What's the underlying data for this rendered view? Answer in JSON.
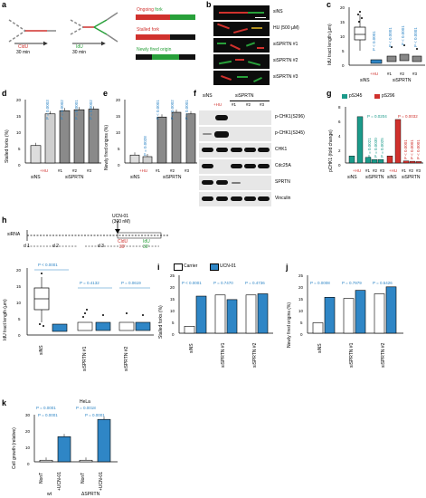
{
  "figure_labels": {
    "a": "a",
    "b": "b",
    "c": "c",
    "d": "d",
    "e": "e",
    "f": "f",
    "g": "g",
    "h": "h",
    "i": "i",
    "j": "j",
    "k": "k"
  },
  "panel_a": {
    "cldu": "CldU",
    "cldu_time": "30 min",
    "idu": "IdU",
    "idu_time": "30 min",
    "ongoing_1": "Ongoing",
    "ongoing_2": "fork",
    "stalled_1": "Stalled",
    "stalled_2": "fork",
    "newly_1": "Newly fired",
    "newly_2": "origin"
  },
  "panel_b": {
    "rows": [
      "siNS",
      "HU (500 µM)",
      "siSPRTN #1",
      "siSPRTN #2",
      "siSPRTN #3"
    ]
  },
  "panel_c": {
    "ylabel": "IdU tract length (µm)",
    "yticks": [
      "0",
      "5",
      "10",
      "15",
      "20"
    ],
    "hu": "+HU",
    "x": [
      "#1",
      "#2",
      "#3"
    ],
    "group_sins": "siNS",
    "group_sisprtn": "siSPRTN",
    "pvals": [
      "P < 0.0001",
      "P < 0.0001",
      "P < 0.0001",
      "P < 0.0001"
    ]
  },
  "panel_d": {
    "ylabel": "Stalled forks (%)",
    "yticks": [
      "0",
      "5",
      "10",
      "15",
      "20"
    ],
    "hu": "+HU",
    "x": [
      "#1",
      "#2",
      "#3"
    ],
    "group_sins": "siNS",
    "group_sisprtn": "siSPRTN",
    "pvals": [
      "P = 0.0003",
      "P = 0.0002",
      "P = 0.0001",
      "P = 0.0002"
    ]
  },
  "panel_e": {
    "ylabel": "Newly fired origins (%)",
    "yticks": [
      "0",
      "5",
      "10",
      "15",
      "20"
    ],
    "hu": "+HU",
    "x": [
      "#1",
      "#2",
      "#3"
    ],
    "group_sins": "siNS",
    "group_sisprtn": "siSPRTN",
    "pvals": [
      "P = 0.0028",
      "P < 0.0001",
      "P = 0.0002",
      "P < 0.0001"
    ]
  },
  "panel_f": {
    "col_sins": "siNS",
    "col_sisprtn": "siSPRTN",
    "cols": [
      "+HU",
      "#1",
      "#2",
      "#3"
    ],
    "rows": [
      "p-CHK1(S296)",
      "p-CHK1(S345)",
      "CHK1",
      "Cdc25A",
      "SPRTN",
      "Vinculin"
    ]
  },
  "panel_g": {
    "ylabel": "pCHK1 (fold change)",
    "yticks": [
      "0",
      "2",
      "4",
      "6",
      "8"
    ],
    "legend": [
      "pS345",
      "pS296"
    ],
    "hu": "+HU",
    "x": [
      "#1",
      "#2",
      "#3"
    ],
    "group_sins": "siNS",
    "group_sisprtn": "siSPRTN",
    "pvals_teal": [
      "P = 0.0204",
      "P = 0.0021",
      "P = 0.0030",
      "P = 0.0025"
    ],
    "pvals_red": [
      "P = 0.0032",
      "P < 0.0001",
      "P < 0.0001",
      "P < 0.0001"
    ]
  },
  "panel_h_timeline": {
    "sirna": "siRNA",
    "ucn": "UCN-01",
    "ucn_dose": "(300 nM)",
    "cldu": "CldU",
    "cldu_time": "30'",
    "idu": "IdU",
    "idu_time": "30'",
    "days": [
      "d 1",
      "d 2",
      "d 3"
    ]
  },
  "panel_h": {
    "ylabel": "IdU tract length (µm)",
    "yticks": [
      "0",
      "5",
      "10",
      "15",
      "20"
    ],
    "groups": [
      "siNS",
      "siSPRTN #1",
      "siSPRTN #2"
    ],
    "pvals": [
      "P < 0.0001",
      "P = 0.4132",
      "P = 0.0619"
    ]
  },
  "legend_ij": {
    "carrier": "Carrier",
    "ucn": "UCN-01"
  },
  "panel_i": {
    "ylabel": "Stalled forks (%)",
    "yticks": [
      "0",
      "5",
      "10",
      "15",
      "20",
      "25"
    ],
    "groups": [
      "siNS",
      "siSPRTN #1",
      "siSPRTN #2"
    ],
    "pvals": [
      "P < 0.0001",
      "P = 0.7470",
      "P = 0.4736"
    ]
  },
  "panel_j": {
    "ylabel": "Newly fired origins (%)",
    "yticks": [
      "0",
      "5",
      "10",
      "15",
      "20",
      "25"
    ],
    "groups": [
      "siNS",
      "siSPRTN #1",
      "siSPRTN #2"
    ],
    "pvals": [
      "P = 0.0008",
      "P = 0.7979",
      "P = 0.5426"
    ]
  },
  "panel_k": {
    "title": "HeLa",
    "ylabel": "Cell growth (relative)",
    "yticks": [
      "0",
      "10",
      "20",
      "30"
    ],
    "x": [
      "NonT",
      "+UCN-01",
      "NonT",
      "+UCN-01"
    ],
    "groups": [
      "wt",
      "ΔSPRTN"
    ],
    "pvals": [
      "P = 0.0001",
      "P = 0.0018",
      "P = 0.0001",
      "P = 0.0001"
    ]
  },
  "colors": {
    "blue": "#2f86c6",
    "teal": "#1b9a8a",
    "red": "#d0312d",
    "green": "#28a03a",
    "gray": "#8a8a8a"
  },
  "chart_data": [
    {
      "panel": "d",
      "type": "bar",
      "categories": [
        "siNS",
        "+HU",
        "#1",
        "#2",
        "#3"
      ],
      "values": [
        5.5,
        15.5,
        16.5,
        16.8,
        17
      ],
      "ylim": [
        0,
        20
      ],
      "ylabel": "Stalled forks (%)"
    },
    {
      "panel": "e",
      "type": "bar",
      "categories": [
        "siNS",
        "+HU",
        "#1",
        "#2",
        "#3"
      ],
      "values": [
        2.5,
        2,
        14.5,
        16,
        15.5
      ],
      "ylim": [
        0,
        20
      ],
      "ylabel": "Newly fired origins (%)"
    },
    {
      "panel": "g",
      "type": "bar",
      "categories": [
        "siNS",
        "+HU",
        "#1",
        "#2",
        "#3"
      ],
      "ylim": [
        0,
        8
      ],
      "ylabel": "pCHK1 (fold change)",
      "series": [
        {
          "name": "pS345",
          "values": [
            1,
            6.6,
            0.8,
            0.5,
            0.5
          ]
        },
        {
          "name": "pS296",
          "values": [
            1,
            6.2,
            0.3,
            0.25,
            0.2
          ]
        }
      ]
    },
    {
      "panel": "i",
      "type": "bar",
      "categories": [
        "siNS",
        "siSPRTN #1",
        "siSPRTN #2"
      ],
      "ylim": [
        0,
        25
      ],
      "ylabel": "Stalled forks (%)",
      "series": [
        {
          "name": "Carrier",
          "values": [
            3,
            16.5,
            16.5
          ]
        },
        {
          "name": "UCN-01",
          "values": [
            16,
            14.5,
            17
          ]
        }
      ]
    },
    {
      "panel": "j",
      "type": "bar",
      "categories": [
        "siNS",
        "siSPRTN #1",
        "siSPRTN #2"
      ],
      "ylim": [
        0,
        25
      ],
      "ylabel": "Newly fired origins (%)",
      "series": [
        {
          "name": "Carrier",
          "values": [
            4.5,
            15,
            17
          ]
        },
        {
          "name": "UCN-01",
          "values": [
            15.5,
            18.5,
            20
          ]
        }
      ]
    },
    {
      "panel": "k",
      "type": "bar",
      "categories": [
        "NonT",
        "+UCN-01",
        "NonT",
        "+UCN-01"
      ],
      "values": [
        1,
        16,
        1,
        27
      ],
      "ylim": [
        0,
        30
      ],
      "ylabel": "Cell growth (relative)"
    }
  ]
}
